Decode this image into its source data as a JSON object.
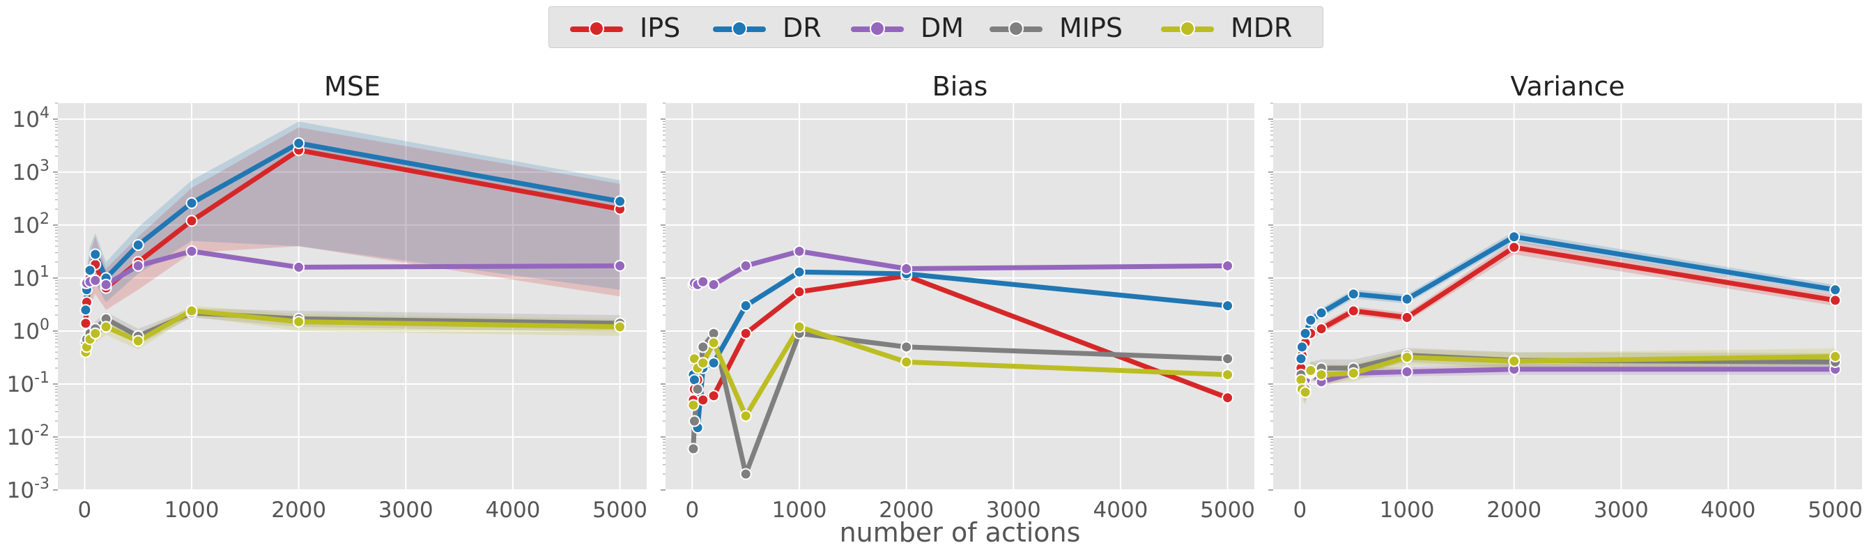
{
  "chart_data": [
    {
      "type": "line",
      "title": "MSE",
      "xlabel": "",
      "ylabel": "",
      "yscale": "log",
      "ylim": [
        0.001,
        20000
      ],
      "xlim": [
        -250,
        5250
      ],
      "xticks": [
        0,
        1000,
        2000,
        3000,
        4000,
        5000
      ],
      "yticks": [
        0.001,
        0.01,
        0.1,
        1,
        10,
        100,
        1000,
        10000
      ],
      "ytick_labels": [
        "10",
        "10",
        "10",
        "10",
        "10",
        "10",
        "10",
        "10"
      ],
      "ytick_exponents": [
        "-3",
        "-2",
        "-1",
        "0",
        "1",
        "2",
        "3",
        "4"
      ],
      "x": [
        10,
        20,
        50,
        100,
        200,
        500,
        1000,
        2000,
        5000
      ],
      "series": [
        {
          "name": "IPS",
          "values": [
            1.4,
            3.5,
            10,
            18,
            6.5,
            20,
            120,
            2600,
            200
          ],
          "band": [
            [
              0.5,
              4
            ],
            [
              1,
              10
            ],
            [
              3,
              30
            ],
            [
              5,
              60
            ],
            [
              2.5,
              15
            ],
            [
              6,
              60
            ],
            [
              30,
              500
            ],
            [
              40,
              7000
            ],
            [
              4.5,
              600
            ]
          ]
        },
        {
          "name": "DR",
          "values": [
            2.5,
            6,
            14,
            28,
            10,
            42,
            260,
            3500,
            280
          ],
          "band": [
            [
              1,
              6
            ],
            [
              2,
              15
            ],
            [
              4,
              40
            ],
            [
              8,
              70
            ],
            [
              3.5,
              20
            ],
            [
              12,
              90
            ],
            [
              50,
              700
            ],
            [
              40,
              9000
            ],
            [
              6,
              700
            ]
          ]
        },
        {
          "name": "DM",
          "values": [
            8,
            8,
            8.5,
            9,
            7.5,
            17,
            32,
            16,
            17
          ],
          "band": [
            [
              7.5,
              8.5
            ],
            [
              7.5,
              8.5
            ],
            [
              8,
              9
            ],
            [
              8.5,
              9.5
            ],
            [
              7,
              8
            ],
            [
              16,
              18
            ],
            [
              30,
              34
            ],
            [
              15,
              17
            ],
            [
              16,
              18
            ]
          ]
        },
        {
          "name": "MIPS",
          "values": [
            0.6,
            0.7,
            0.9,
            1.1,
            1.7,
            0.8,
            2.2,
            1.7,
            1.4
          ],
          "band": [
            [
              0.35,
              0.9
            ],
            [
              0.45,
              1.0
            ],
            [
              0.6,
              1.3
            ],
            [
              0.8,
              1.5
            ],
            [
              1.2,
              2.3
            ],
            [
              0.55,
              1.1
            ],
            [
              1.8,
              2.7
            ],
            [
              1.2,
              2.4
            ],
            [
              0.95,
              2.0
            ]
          ]
        },
        {
          "name": "MDR",
          "values": [
            0.4,
            0.5,
            0.7,
            0.9,
            1.2,
            0.65,
            2.4,
            1.5,
            1.2
          ],
          "band": [
            [
              0.25,
              0.7
            ],
            [
              0.3,
              0.8
            ],
            [
              0.45,
              1.0
            ],
            [
              0.6,
              1.3
            ],
            [
              0.85,
              1.7
            ],
            [
              0.45,
              0.9
            ],
            [
              1.9,
              3.0
            ],
            [
              1.0,
              2.1
            ],
            [
              0.8,
              1.7
            ]
          ]
        }
      ]
    },
    {
      "type": "line",
      "title": "Bias",
      "xlabel": "number of actions",
      "ylabel": "",
      "yscale": "log",
      "ylim": [
        0.001,
        20000
      ],
      "xlim": [
        -250,
        5250
      ],
      "xticks": [
        0,
        1000,
        2000,
        3000,
        4000,
        5000
      ],
      "x": [
        10,
        20,
        50,
        100,
        200,
        500,
        1000,
        2000,
        5000
      ],
      "series": [
        {
          "name": "IPS",
          "values": [
            0.05,
            0.08,
            0.12,
            0.05,
            0.06,
            0.9,
            5.5,
            11,
            0.055
          ]
        },
        {
          "name": "DR",
          "values": [
            0.15,
            0.12,
            0.015,
            0.2,
            0.25,
            3.0,
            13,
            12,
            3.0
          ]
        },
        {
          "name": "DM",
          "values": [
            7.5,
            8,
            7.5,
            8.5,
            7.5,
            17,
            32,
            15,
            17
          ]
        },
        {
          "name": "MIPS",
          "values": [
            0.006,
            0.02,
            0.08,
            0.5,
            0.9,
            0.002,
            0.9,
            0.5,
            0.3
          ]
        },
        {
          "name": "MDR",
          "values": [
            0.04,
            0.3,
            0.2,
            0.25,
            0.6,
            0.025,
            1.2,
            0.26,
            0.15
          ]
        }
      ]
    },
    {
      "type": "line",
      "title": "Variance",
      "xlabel": "",
      "ylabel": "",
      "yscale": "log",
      "ylim": [
        0.001,
        20000
      ],
      "xlim": [
        -250,
        5250
      ],
      "xticks": [
        0,
        1000,
        2000,
        3000,
        4000,
        5000
      ],
      "x": [
        10,
        20,
        50,
        100,
        200,
        500,
        1000,
        2000,
        5000
      ],
      "series": [
        {
          "name": "IPS",
          "values": [
            0.2,
            0.35,
            0.6,
            0.9,
            1.1,
            2.4,
            1.8,
            38,
            3.8
          ],
          "band": [
            [
              0.15,
              0.25
            ],
            [
              0.28,
              0.44
            ],
            [
              0.48,
              0.75
            ],
            [
              0.72,
              1.1
            ],
            [
              0.9,
              1.35
            ],
            [
              2.0,
              2.9
            ],
            [
              1.5,
              2.2
            ],
            [
              28,
              50
            ],
            [
              3.0,
              4.8
            ]
          ]
        },
        {
          "name": "DR",
          "values": [
            0.3,
            0.5,
            0.9,
            1.6,
            2.2,
            5,
            4,
            60,
            6
          ],
          "band": [
            [
              0.24,
              0.38
            ],
            [
              0.4,
              0.62
            ],
            [
              0.72,
              1.1
            ],
            [
              1.3,
              2.0
            ],
            [
              1.8,
              2.7
            ],
            [
              4.1,
              6.1
            ],
            [
              3.3,
              4.9
            ],
            [
              48,
              76
            ],
            [
              4.9,
              7.4
            ]
          ]
        },
        {
          "name": "DM",
          "values": [
            0.14,
            0.13,
            0.12,
            0.16,
            0.11,
            0.16,
            0.17,
            0.19,
            0.19
          ],
          "band": [
            [
              0.11,
              0.18
            ],
            [
              0.1,
              0.17
            ],
            [
              0.095,
              0.15
            ],
            [
              0.13,
              0.2
            ],
            [
              0.09,
              0.14
            ],
            [
              0.13,
              0.2
            ],
            [
              0.14,
              0.21
            ],
            [
              0.15,
              0.24
            ],
            [
              0.15,
              0.24
            ]
          ]
        },
        {
          "name": "MIPS",
          "values": [
            0.15,
            0.1,
            0.08,
            0.17,
            0.2,
            0.2,
            0.35,
            0.28,
            0.26
          ],
          "band": [
            [
              0.1,
              0.22
            ],
            [
              0.06,
              0.16
            ],
            [
              0.045,
              0.14
            ],
            [
              0.11,
              0.26
            ],
            [
              0.14,
              0.29
            ],
            [
              0.14,
              0.29
            ],
            [
              0.26,
              0.48
            ],
            [
              0.2,
              0.4
            ],
            [
              0.18,
              0.38
            ]
          ]
        },
        {
          "name": "MDR",
          "values": [
            0.12,
            0.08,
            0.07,
            0.18,
            0.15,
            0.16,
            0.32,
            0.27,
            0.33
          ],
          "band": [
            [
              0.08,
              0.18
            ],
            [
              0.05,
              0.13
            ],
            [
              0.04,
              0.12
            ],
            [
              0.12,
              0.27
            ],
            [
              0.1,
              0.23
            ],
            [
              0.11,
              0.24
            ],
            [
              0.23,
              0.45
            ],
            [
              0.19,
              0.39
            ],
            [
              0.23,
              0.47
            ]
          ]
        }
      ]
    }
  ],
  "legend": [
    {
      "name": "IPS",
      "color": "#d62728"
    },
    {
      "name": "DR",
      "color": "#1f77b4"
    },
    {
      "name": "DM",
      "color": "#9467bd"
    },
    {
      "name": "MIPS",
      "color": "#7f7f7f"
    },
    {
      "name": "MDR",
      "color": "#bcbd22"
    }
  ],
  "legend_placement": "top-center",
  "grid": true
}
